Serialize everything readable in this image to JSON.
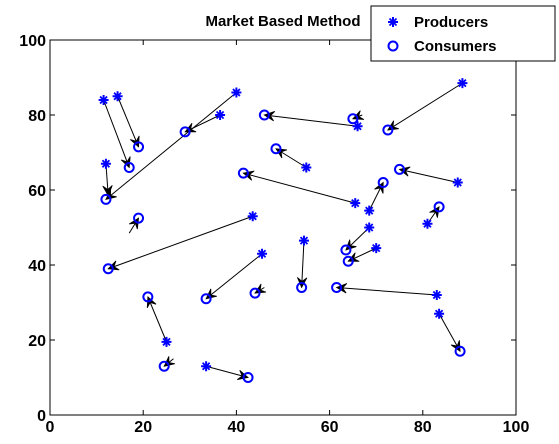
{
  "chart_data": {
    "type": "scatter",
    "title": "Market Based Method",
    "xlabel": "",
    "ylabel": "",
    "xlim": [
      0,
      100
    ],
    "ylim": [
      0,
      100
    ],
    "x_ticks": [
      0,
      20,
      40,
      60,
      80,
      100
    ],
    "y_ticks": [
      0,
      20,
      40,
      60,
      80,
      100
    ],
    "grid": false,
    "legend_position": "top-right",
    "series": [
      {
        "name": "Producers",
        "marker": "star",
        "color": "#0000ff",
        "points": [
          [
            11.5,
            84
          ],
          [
            14.5,
            85
          ],
          [
            12,
            67
          ],
          [
            36.5,
            80
          ],
          [
            40,
            86
          ],
          [
            43.5,
            53
          ],
          [
            45.5,
            43
          ],
          [
            25,
            19.5
          ],
          [
            33.5,
            13
          ],
          [
            55,
            66
          ],
          [
            54.5,
            46.5
          ],
          [
            66,
            77
          ],
          [
            65.5,
            56.5
          ],
          [
            68.5,
            54.5
          ],
          [
            68.5,
            50
          ],
          [
            70,
            44.5
          ],
          [
            87.5,
            62
          ],
          [
            81,
            51
          ],
          [
            88.5,
            88.5
          ],
          [
            83,
            32
          ],
          [
            83.5,
            27
          ]
        ]
      },
      {
        "name": "Consumers",
        "marker": "circle",
        "color": "#0000ff",
        "points": [
          [
            17,
            66
          ],
          [
            19,
            71.5
          ],
          [
            12,
            57.5
          ],
          [
            29,
            75.5
          ],
          [
            46,
            80
          ],
          [
            48.5,
            71
          ],
          [
            41.5,
            64.5
          ],
          [
            19,
            52.5
          ],
          [
            12.5,
            39
          ],
          [
            21,
            31.5
          ],
          [
            24.5,
            13
          ],
          [
            33.5,
            31
          ],
          [
            44,
            32.5
          ],
          [
            42.5,
            10
          ],
          [
            54,
            34
          ],
          [
            65,
            79
          ],
          [
            72.5,
            76
          ],
          [
            75,
            65.5
          ],
          [
            71.5,
            62
          ],
          [
            63.5,
            44
          ],
          [
            64,
            41
          ],
          [
            61.5,
            34
          ],
          [
            83.5,
            55.5
          ],
          [
            88,
            17
          ]
        ]
      }
    ],
    "links": [
      [
        [
          11.5,
          84
        ],
        [
          17,
          66
        ]
      ],
      [
        [
          14.5,
          85
        ],
        [
          19,
          71.5
        ]
      ],
      [
        [
          12,
          67
        ],
        [
          12.5,
          58.5
        ]
      ],
      [
        [
          40,
          86
        ],
        [
          12,
          57.5
        ]
      ],
      [
        [
          36.5,
          80
        ],
        [
          29,
          75.5
        ]
      ],
      [
        [
          66,
          77
        ],
        [
          46,
          80
        ]
      ],
      [
        [
          55,
          66
        ],
        [
          48.5,
          71
        ]
      ],
      [
        [
          65.5,
          56.5
        ],
        [
          41.5,
          64.5
        ]
      ],
      [
        [
          43.5,
          53
        ],
        [
          12.5,
          39
        ]
      ],
      [
        [
          45.5,
          43
        ],
        [
          33.5,
          31
        ]
      ],
      [
        [
          25,
          19.5
        ],
        [
          21,
          31.5
        ]
      ],
      [
        [
          33.5,
          13
        ],
        [
          42.5,
          10
        ]
      ],
      [
        [
          54.5,
          46.5
        ],
        [
          54,
          34
        ]
      ],
      [
        [
          83,
          32
        ],
        [
          61.5,
          34
        ]
      ],
      [
        [
          87.5,
          62
        ],
        [
          75,
          65.5
        ]
      ],
      [
        [
          88.5,
          88.5
        ],
        [
          72.5,
          76
        ]
      ],
      [
        [
          83.5,
          27
        ],
        [
          88,
          17
        ]
      ],
      [
        [
          68.5,
          54.5
        ],
        [
          71.5,
          62
        ]
      ],
      [
        [
          68.5,
          50
        ],
        [
          63.5,
          44
        ]
      ],
      [
        [
          70,
          44.5
        ],
        [
          64,
          41
        ]
      ],
      [
        [
          81,
          51
        ],
        [
          83.5,
          55.5
        ]
      ],
      [
        [
          17,
          48.5
        ],
        [
          19,
          52.5
        ]
      ],
      [
        [
          46,
          34
        ],
        [
          44,
          32.5
        ]
      ],
      [
        [
          26.5,
          15
        ],
        [
          24.5,
          13
        ]
      ],
      [
        [
          67,
          80
        ],
        [
          65,
          79
        ]
      ]
    ]
  }
}
